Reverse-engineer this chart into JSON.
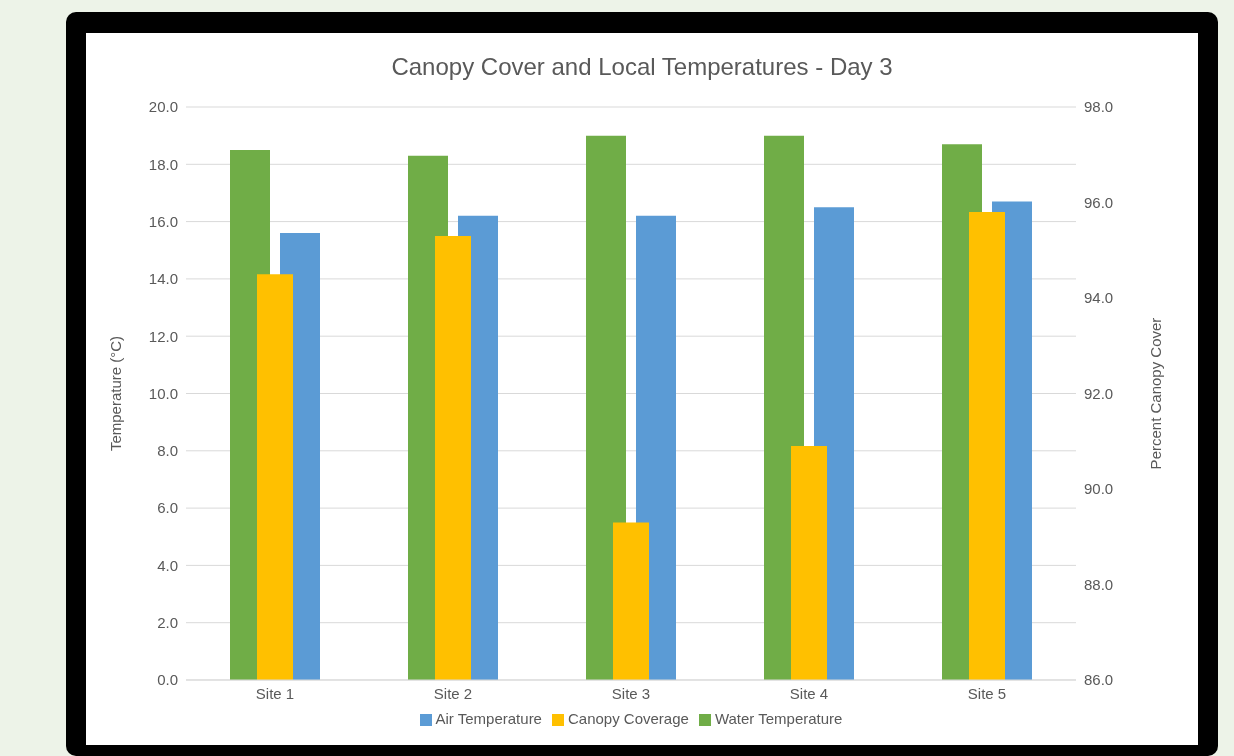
{
  "chart_data": {
    "type": "bar",
    "title": "Canopy Cover and Local Temperatures - Day 3",
    "ylabel": "Temperature (°C)",
    "y2label": "Percent Canopy Cover",
    "categories": [
      "Site 1",
      "Site 2",
      "Site 3",
      "Site 4",
      "Site 5"
    ],
    "series": [
      {
        "name": "Water Temperature",
        "color": "#70ad47",
        "values": [
          18.5,
          18.3,
          19.0,
          19.0,
          18.7
        ]
      },
      {
        "name": "Air Temperature",
        "color": "#5b9bd5",
        "values": [
          15.6,
          16.2,
          16.2,
          16.5,
          16.7
        ]
      },
      {
        "name": "Canopy Coverage",
        "color": "#ffc000",
        "values": [
          94.5,
          95.3,
          89.3,
          90.9,
          95.8
        ],
        "axis": "y2"
      }
    ],
    "ylim": [
      0,
      20
    ],
    "yticks": [
      {
        "value": 0,
        "label": "0.0"
      },
      {
        "value": 2,
        "label": "2.0"
      },
      {
        "value": 4,
        "label": "4.0"
      },
      {
        "value": 6,
        "label": "6.0"
      },
      {
        "value": 8,
        "label": "8.0"
      },
      {
        "value": 10,
        "label": "10.0"
      },
      {
        "value": 12,
        "label": "12.0"
      },
      {
        "value": 14,
        "label": "14.0"
      },
      {
        "value": 16,
        "label": "16.0"
      },
      {
        "value": 18,
        "label": "18.0"
      },
      {
        "value": 20,
        "label": "20.0"
      }
    ],
    "y2lim": [
      86,
      98
    ],
    "y2ticks": [
      {
        "value": 86,
        "label": "86.0"
      },
      {
        "value": 88,
        "label": "88.0"
      },
      {
        "value": 90,
        "label": "90.0"
      },
      {
        "value": 92,
        "label": "92.0"
      },
      {
        "value": 94,
        "label": "94.0"
      },
      {
        "value": 96,
        "label": "96.0"
      },
      {
        "value": 98,
        "label": "98.0"
      }
    ],
    "grid": "y",
    "legend": "bottom"
  }
}
